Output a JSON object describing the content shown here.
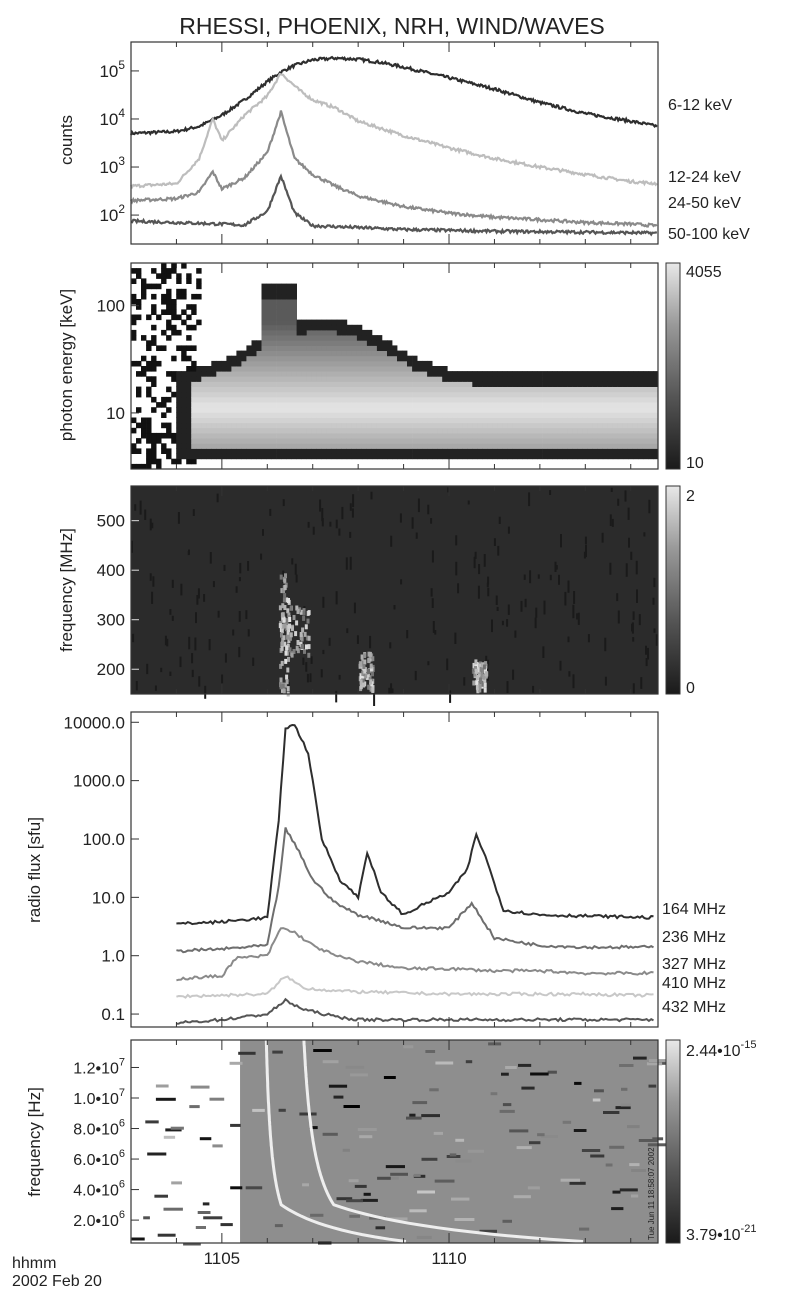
{
  "title": "RHESSI, PHOENIX, NRH, WIND/WAVES",
  "footer": {
    "label1": "hhmm",
    "label2": "2002 Feb 20"
  },
  "x_axis": {
    "ticks": [
      "1105",
      "1110"
    ],
    "range": [
      1103.0,
      1114.6
    ]
  },
  "colors": {
    "frame": "#333333",
    "dark": "#2e2e2e",
    "mid": "#8a8a8a",
    "light": "#bdbdbd",
    "vlight": "#d6d6d6"
  },
  "chart_data": [
    {
      "type": "line",
      "panel": "rhessi-lightcurves",
      "ylabel": "counts",
      "ylog": true,
      "ylim": [
        25,
        400000
      ],
      "yticks": [
        "10^2",
        "10^3",
        "10^4",
        "10^5"
      ],
      "series": [
        {
          "name": "6-12 keV",
          "color": "#2e2e2e",
          "x": [
            1103.0,
            1104.0,
            1104.5,
            1105.0,
            1105.5,
            1106.0,
            1106.3,
            1106.6,
            1107.0,
            1107.5,
            1108.0,
            1108.5,
            1109.0,
            1110.0,
            1111.0,
            1112.0,
            1113.0,
            1114.0,
            1114.6
          ],
          "values": [
            5000,
            5500,
            7000,
            12000,
            25000,
            60000,
            95000,
            130000,
            170000,
            185000,
            175000,
            150000,
            120000,
            72000,
            42000,
            22000,
            13000,
            9000,
            7000
          ]
        },
        {
          "name": "12-24 keV",
          "color": "#bdbdbd",
          "x": [
            1103.0,
            1104.0,
            1104.5,
            1104.8,
            1105.0,
            1105.5,
            1106.0,
            1106.3,
            1106.7,
            1107.0,
            1107.5,
            1108.0,
            1109.0,
            1110.0,
            1111.0,
            1112.0,
            1113.0,
            1114.0,
            1114.6
          ],
          "values": [
            400,
            450,
            1500,
            10000,
            3500,
            12000,
            30000,
            90000,
            40000,
            25000,
            17000,
            9000,
            4500,
            2500,
            1500,
            1000,
            700,
            500,
            450
          ]
        },
        {
          "name": "24-50 keV",
          "color": "#8a8a8a",
          "x": [
            1103.0,
            1104.0,
            1104.5,
            1104.8,
            1105.0,
            1105.5,
            1106.0,
            1106.3,
            1106.6,
            1107.0,
            1107.5,
            1108.0,
            1109.0,
            1110.0,
            1111.0,
            1112.0,
            1113.0,
            1114.0,
            1114.6
          ],
          "values": [
            200,
            220,
            300,
            800,
            350,
            600,
            2000,
            14000,
            1500,
            700,
            400,
            250,
            150,
            110,
            90,
            80,
            70,
            65,
            60
          ]
        },
        {
          "name": "50-100 keV",
          "color": "#555555",
          "x": [
            1103.0,
            1104.0,
            1105.0,
            1105.5,
            1106.0,
            1106.3,
            1106.6,
            1107.0,
            1108.0,
            1109.0,
            1110.0,
            1111.0,
            1112.0,
            1113.0,
            1114.0,
            1114.6
          ],
          "values": [
            75,
            70,
            65,
            62,
            120,
            650,
            110,
            60,
            55,
            50,
            48,
            46,
            45,
            44,
            43,
            42
          ]
        }
      ]
    },
    {
      "type": "heatmap",
      "panel": "rhessi-spectrogram",
      "ylabel": "photon energy [keV]",
      "ylog": true,
      "ylim": [
        3,
        250
      ],
      "yticks": [
        "10",
        "100"
      ],
      "colorbar": {
        "max": "4055",
        "min": "10"
      }
    },
    {
      "type": "heatmap",
      "panel": "phoenix-spectrogram",
      "ylabel": "frequency [MHz]",
      "ylim": [
        150,
        570
      ],
      "yticks": [
        "200",
        "300",
        "400",
        "500"
      ],
      "colorbar": {
        "max": "2",
        "min": "0"
      }
    },
    {
      "type": "line",
      "panel": "nrh-radio-flux",
      "ylabel": "radio flux [sfu]",
      "ylog": true,
      "ylim": [
        0.06,
        15000
      ],
      "yticks": [
        "0.1",
        "1.0",
        "10.0",
        "100.0",
        "1000.0",
        "10000.0"
      ],
      "series": [
        {
          "name": "164 MHz",
          "color": "#2e2e2e",
          "x": [
            1104.0,
            1105.0,
            1106.0,
            1106.25,
            1106.4,
            1106.6,
            1106.9,
            1107.2,
            1107.6,
            1108.0,
            1108.2,
            1108.5,
            1109.0,
            1109.5,
            1110.0,
            1110.4,
            1110.6,
            1110.8,
            1111.2,
            1112.0,
            1113.0,
            1114.0,
            1114.5
          ],
          "values": [
            3.5,
            3.8,
            4.5,
            200,
            8000,
            9000,
            3000,
            100,
            20,
            10,
            60,
            12,
            5,
            8,
            12,
            30,
            120,
            50,
            6,
            5,
            4.8,
            4.6,
            4.5
          ]
        },
        {
          "name": "236 MHz",
          "color": "#6e6e6e",
          "x": [
            1104.0,
            1105.0,
            1106.0,
            1106.25,
            1106.4,
            1106.7,
            1107.0,
            1107.5,
            1108.0,
            1108.5,
            1109.0,
            1110.0,
            1110.5,
            1111.0,
            1112.0,
            1113.0,
            1114.0,
            1114.5
          ],
          "values": [
            1.2,
            1.3,
            1.5,
            15,
            150,
            60,
            20,
            8,
            5,
            4,
            3,
            3,
            8,
            2,
            1.5,
            1.4,
            1.4,
            1.4
          ]
        },
        {
          "name": "327 MHz",
          "color": "#8a8a8a",
          "x": [
            1104.0,
            1105.0,
            1105.3,
            1106.0,
            1106.3,
            1106.6,
            1107.0,
            1107.5,
            1108.0,
            1108.5,
            1109.0,
            1110.0,
            1111.0,
            1112.0,
            1113.0,
            1114.0,
            1114.5
          ],
          "values": [
            0.4,
            0.45,
            0.9,
            1.0,
            3.0,
            2.5,
            1.5,
            1.0,
            0.8,
            0.7,
            0.6,
            0.6,
            0.55,
            0.55,
            0.5,
            0.5,
            0.5
          ]
        },
        {
          "name": "410 MHz",
          "color": "#c8c8c8",
          "x": [
            1104.0,
            1105.0,
            1106.0,
            1106.4,
            1106.8,
            1107.5,
            1108.0,
            1109.0,
            1110.0,
            1111.0,
            1112.0,
            1113.0,
            1114.0,
            1114.5
          ],
          "values": [
            0.2,
            0.21,
            0.22,
            0.45,
            0.28,
            0.25,
            0.24,
            0.23,
            0.22,
            0.22,
            0.22,
            0.22,
            0.21,
            0.21
          ]
        },
        {
          "name": "432 MHz",
          "color": "#555555",
          "x": [
            1104.0,
            1105.0,
            1106.0,
            1106.4,
            1106.8,
            1107.5,
            1108.0,
            1109.0,
            1110.0,
            1111.0,
            1112.0,
            1113.0,
            1114.0,
            1114.5
          ],
          "values": [
            0.07,
            0.08,
            0.1,
            0.17,
            0.12,
            0.09,
            0.08,
            0.08,
            0.08,
            0.08,
            0.08,
            0.08,
            0.08,
            0.08
          ]
        }
      ]
    },
    {
      "type": "heatmap",
      "panel": "wind-waves-spectrogram",
      "ylabel": "frequency [Hz]",
      "ylim": [
        500000,
        13800000
      ],
      "yticks": [
        "2.0•10^6",
        "4.0•10^6",
        "6.0•10^6",
        "8.0•10^6",
        "1.0•10^7",
        "1.2•10^7"
      ],
      "colorbar": {
        "max": "2.44•10^-15",
        "min": "3.79•10^-21"
      },
      "side_note": "Tue Jun 11 18:58:07 2002"
    }
  ]
}
